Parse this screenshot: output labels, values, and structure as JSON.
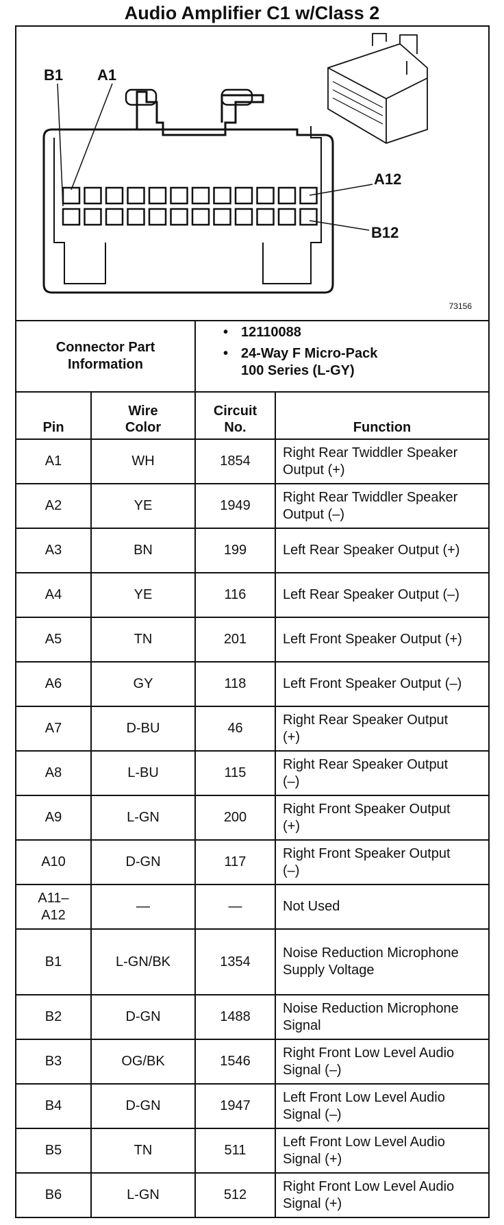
{
  "title": "Audio Amplifier C1 w/Class 2",
  "diagram": {
    "labels": {
      "b1": "B1",
      "a1": "A1",
      "a12": "A12",
      "b12": "B12"
    },
    "figure_number": "73156"
  },
  "connector_info": {
    "label_line1": "Connector Part",
    "label_line2": "Information",
    "items": [
      "12110088",
      "24-Way F Micro-Pack",
      "100 Series (L-GY)"
    ]
  },
  "table": {
    "headers": {
      "pin": "Pin",
      "wire_color_1": "Wire",
      "wire_color_2": "Color",
      "circuit_1": "Circuit",
      "circuit_2": "No.",
      "function": "Function"
    },
    "rows": [
      {
        "pin": "A1",
        "color": "WH",
        "circuit": "1854",
        "function": "Right Rear Twiddler Speaker Output (+)"
      },
      {
        "pin": "A2",
        "color": "YE",
        "circuit": "1949",
        "function": "Right Rear Twiddler Speaker Output (–)"
      },
      {
        "pin": "A3",
        "color": "BN",
        "circuit": "199",
        "function": "Left Rear Speaker Output (+)"
      },
      {
        "pin": "A4",
        "color": "YE",
        "circuit": "116",
        "function": "Left Rear Speaker Output (–)"
      },
      {
        "pin": "A5",
        "color": "TN",
        "circuit": "201",
        "function": "Left Front Speaker Output (+)"
      },
      {
        "pin": "A6",
        "color": "GY",
        "circuit": "118",
        "function": "Left Front Speaker Output (–)"
      },
      {
        "pin": "A7",
        "color": "D-BU",
        "circuit": "46",
        "function": "Right Rear Speaker Output (+)"
      },
      {
        "pin": "A8",
        "color": "L-BU",
        "circuit": "115",
        "function": "Right Rear Speaker Output (–)"
      },
      {
        "pin": "A9",
        "color": "L-GN",
        "circuit": "200",
        "function": "Right Front Speaker Output (+)"
      },
      {
        "pin": "A10",
        "color": "D-GN",
        "circuit": "117",
        "function": "Right Front Speaker Output (–)"
      },
      {
        "pin": "A11– A12",
        "color": "—",
        "circuit": "—",
        "function": "Not Used"
      },
      {
        "pin": "B1",
        "color": "L-GN/BK",
        "circuit": "1354",
        "function": "Noise Reduction Microphone Supply Voltage"
      },
      {
        "pin": "B2",
        "color": "D-GN",
        "circuit": "1488",
        "function": "Noise Reduction Microphone Signal"
      },
      {
        "pin": "B3",
        "color": "OG/BK",
        "circuit": "1546",
        "function": "Right Front Low Level Audio Signal (–)"
      },
      {
        "pin": "B4",
        "color": "D-GN",
        "circuit": "1947",
        "function": "Left Front Low Level Audio Signal (–)"
      },
      {
        "pin": "B5",
        "color": "TN",
        "circuit": "511",
        "function": "Left Front Low Level Audio Signal (+)"
      },
      {
        "pin": "B6",
        "color": "L-GN",
        "circuit": "512",
        "function": "Right Front Low Level Audio Signal (+)"
      }
    ]
  }
}
